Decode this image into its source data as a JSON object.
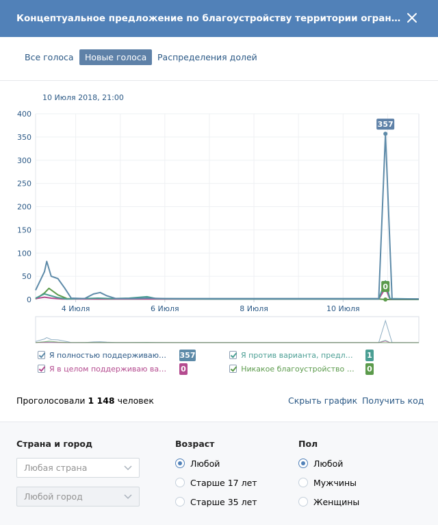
{
  "dialog": {
    "title": "Концептуальное предложение по благоустройству территории ограниченной ул. Ва...",
    "close_icon": "close-icon"
  },
  "tabs": [
    {
      "label": "Все голоса",
      "active": false
    },
    {
      "label": "Новые голоса",
      "active": true
    },
    {
      "label": "Распределения долей",
      "active": false
    }
  ],
  "chart": {
    "date_label": "10 Июля 2018, 21:00",
    "peak_label": "357",
    "zero_label": "0"
  },
  "chart_data": {
    "type": "line",
    "yticks": [
      "400",
      "350",
      "300",
      "250",
      "200",
      "150",
      "100",
      "50",
      "0"
    ],
    "ylim": [
      0,
      400
    ],
    "xlim": [
      3.1,
      11.7
    ],
    "xticks": [
      {
        "label": "4 Июля",
        "x": 4
      },
      {
        "label": "6 Июля",
        "x": 6
      },
      {
        "label": "8 Июля",
        "x": 8
      },
      {
        "label": "10 Июля",
        "x": 10
      }
    ],
    "grid": true,
    "series": [
      {
        "name": "Я полностью поддерживаю вар...",
        "color": "#5d8aa8",
        "points": [
          [
            3.1,
            20
          ],
          [
            3.3,
            60
          ],
          [
            3.35,
            82
          ],
          [
            3.45,
            50
          ],
          [
            3.6,
            45
          ],
          [
            3.75,
            25
          ],
          [
            3.9,
            3
          ],
          [
            4.2,
            2
          ],
          [
            4.4,
            12
          ],
          [
            4.55,
            15
          ],
          [
            4.7,
            8
          ],
          [
            4.9,
            2
          ],
          [
            5.3,
            2
          ],
          [
            5.6,
            3
          ],
          [
            6.0,
            2
          ],
          [
            7.0,
            2
          ],
          [
            8.0,
            2
          ],
          [
            9.0,
            2
          ],
          [
            10.0,
            2
          ],
          [
            10.8,
            2
          ],
          [
            10.95,
            357
          ],
          [
            11.1,
            1
          ],
          [
            11.7,
            1
          ]
        ]
      },
      {
        "name": "Я против варианта, предложе...",
        "color": "#4a9e93",
        "points": [
          [
            3.1,
            3
          ],
          [
            3.3,
            12
          ],
          [
            3.45,
            8
          ],
          [
            3.6,
            4
          ],
          [
            3.8,
            1
          ],
          [
            4.5,
            3
          ],
          [
            4.8,
            2
          ],
          [
            5.2,
            3
          ],
          [
            5.6,
            6
          ],
          [
            5.8,
            2
          ],
          [
            7.0,
            1
          ],
          [
            9.0,
            1
          ],
          [
            10.8,
            1
          ],
          [
            10.95,
            40
          ],
          [
            11.05,
            2
          ],
          [
            11.7,
            1
          ]
        ]
      },
      {
        "name": "Я в целом поддерживаю вариа...",
        "color": "#b44b8f",
        "points": [
          [
            3.1,
            2
          ],
          [
            3.3,
            5
          ],
          [
            3.45,
            3
          ],
          [
            3.7,
            1
          ],
          [
            4.5,
            1
          ],
          [
            7.0,
            1
          ],
          [
            10.8,
            1
          ],
          [
            10.95,
            25
          ],
          [
            11.05,
            1
          ],
          [
            11.7,
            1
          ]
        ]
      },
      {
        "name": "Никакое благоустройство не ...",
        "color": "#5b9a4b",
        "points": [
          [
            3.1,
            1
          ],
          [
            3.3,
            14
          ],
          [
            3.4,
            24
          ],
          [
            3.6,
            10
          ],
          [
            3.8,
            2
          ],
          [
            4.5,
            1
          ],
          [
            7.0,
            1
          ],
          [
            10.8,
            1
          ],
          [
            10.95,
            0
          ],
          [
            11.7,
            0
          ]
        ]
      }
    ]
  },
  "legend": [
    {
      "label": "Я полностью поддерживаю вар...",
      "count": "357",
      "color": "#5d8aa8",
      "text_color": "#2a5885"
    },
    {
      "label": "Я против варианта, предложе...",
      "count": "1",
      "color": "#4a9e93",
      "text_color": "#4a9e93"
    },
    {
      "label": "Я в целом поддерживаю вариа...",
      "count": "0",
      "color": "#b44b8f",
      "text_color": "#b44b8f"
    },
    {
      "label": "Никакое благоустройство не ...",
      "count": "0",
      "color": "#5b9a4b",
      "text_color": "#5b9a4b"
    }
  ],
  "summary": {
    "prefix": "Проголосовали ",
    "count": "1 148",
    "suffix": " человек",
    "hide_chart": "Скрыть график",
    "get_code": "Получить код"
  },
  "filters": {
    "location": {
      "header": "Страна и город",
      "country_placeholder": "Любая страна",
      "city_placeholder": "Любой город"
    },
    "age": {
      "header": "Возраст",
      "options": [
        {
          "label": "Любой",
          "selected": true
        },
        {
          "label": "Старше 17 лет",
          "selected": false
        },
        {
          "label": "Старше 35 лет",
          "selected": false
        }
      ]
    },
    "gender": {
      "header": "Пол",
      "options": [
        {
          "label": "Любой",
          "selected": true
        },
        {
          "label": "Мужчины",
          "selected": false
        },
        {
          "label": "Женщины",
          "selected": false
        }
      ]
    }
  },
  "colors": {
    "header_bg": "#5181b8",
    "active_tab_bg": "#5e81a8",
    "link": "#2a5885"
  }
}
